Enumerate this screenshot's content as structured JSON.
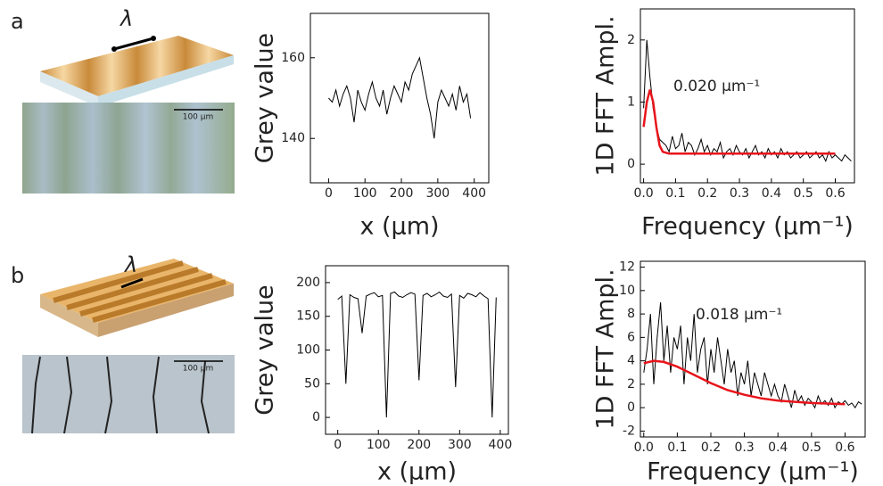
{
  "panels": [
    {
      "label": "a",
      "symbol": "λ",
      "scale_bar": "100 μm"
    },
    {
      "label": "b",
      "symbol": "λ",
      "scale_bar": "100 μm"
    }
  ],
  "chart_data": [
    {
      "type": "line",
      "x_label": "x (μm)",
      "y_label": "Grey value",
      "xlim": [
        -50,
        440
      ],
      "ylim": [
        129,
        171
      ],
      "xticks": [
        0,
        100,
        200,
        300,
        400
      ],
      "yticks": [
        140,
        160
      ],
      "series": [
        {
          "color": "#000000",
          "x": [
            0,
            10,
            20,
            30,
            40,
            50,
            60,
            70,
            80,
            90,
            100,
            110,
            120,
            130,
            140,
            150,
            160,
            170,
            180,
            190,
            200,
            210,
            220,
            230,
            240,
            250,
            260,
            270,
            280,
            290,
            300,
            310,
            320,
            330,
            340,
            350,
            360,
            370,
            380,
            390
          ],
          "values": [
            150,
            149,
            152,
            148,
            151,
            153,
            150,
            144,
            152,
            149,
            147,
            151,
            154,
            150,
            148,
            152,
            146,
            150,
            153,
            151,
            149,
            154,
            152,
            156,
            158,
            160,
            155,
            150,
            146,
            140,
            149,
            152,
            150,
            148,
            151,
            147,
            153,
            149,
            151,
            145
          ]
        }
      ]
    },
    {
      "type": "line",
      "x_label": "x (μm)",
      "y_label": "Grey value",
      "xlim": [
        -30,
        420
      ],
      "ylim": [
        -25,
        225
      ],
      "xticks": [
        0,
        100,
        200,
        300,
        400
      ],
      "yticks": [
        0,
        50,
        100,
        150,
        200
      ],
      "series": [
        {
          "color": "#000000",
          "x": [
            0,
            10,
            20,
            30,
            40,
            50,
            60,
            70,
            80,
            90,
            100,
            110,
            120,
            130,
            140,
            150,
            160,
            170,
            180,
            190,
            200,
            210,
            220,
            230,
            240,
            250,
            260,
            270,
            280,
            290,
            300,
            310,
            320,
            330,
            340,
            350,
            360,
            370,
            380,
            390
          ],
          "values": [
            175,
            180,
            50,
            182,
            178,
            176,
            125,
            180,
            183,
            185,
            179,
            181,
            0,
            184,
            186,
            180,
            178,
            182,
            185,
            183,
            55,
            181,
            184,
            179,
            182,
            186,
            180,
            178,
            183,
            45,
            181,
            177,
            184,
            182,
            179,
            185,
            180,
            176,
            0,
            178
          ]
        }
      ]
    },
    {
      "type": "line",
      "x_label": "Frequency (μm⁻¹)",
      "y_label": "1D FFT Ampl.",
      "annotation": "0.020 μm⁻¹",
      "xlim": [
        -0.01,
        0.66
      ],
      "ylim": [
        -0.3,
        2.5
      ],
      "xticks": [
        {
          "value": 0,
          "label": "0.0"
        },
        0.1,
        0.2,
        0.3,
        0.4,
        0.5,
        0.6
      ],
      "yticks": [
        0,
        1,
        2
      ],
      "series": [
        {
          "color": "#000000",
          "x": [
            0,
            0.01,
            0.02,
            0.03,
            0.04,
            0.05,
            0.06,
            0.07,
            0.08,
            0.09,
            0.1,
            0.11,
            0.12,
            0.13,
            0.14,
            0.15,
            0.16,
            0.17,
            0.18,
            0.19,
            0.2,
            0.21,
            0.22,
            0.23,
            0.24,
            0.25,
            0.26,
            0.27,
            0.28,
            0.29,
            0.3,
            0.31,
            0.32,
            0.33,
            0.34,
            0.35,
            0.36,
            0.37,
            0.38,
            0.39,
            0.4,
            0.41,
            0.42,
            0.43,
            0.44,
            0.45,
            0.46,
            0.47,
            0.48,
            0.49,
            0.5,
            0.51,
            0.52,
            0.53,
            0.54,
            0.55,
            0.56,
            0.57,
            0.58,
            0.59,
            0.6,
            0.61,
            0.62,
            0.63,
            0.64,
            0.65
          ],
          "values": [
            0.9,
            2.0,
            1.4,
            0.9,
            0.6,
            0.4,
            0.35,
            0.3,
            0.2,
            0.45,
            0.25,
            0.3,
            0.5,
            0.2,
            0.35,
            0.3,
            0.15,
            0.25,
            0.4,
            0.2,
            0.3,
            0.15,
            0.25,
            0.2,
            0.35,
            0.1,
            0.2,
            0.25,
            0.15,
            0.3,
            0.2,
            0.15,
            0.25,
            0.1,
            0.2,
            0.3,
            0.15,
            0.2,
            0.1,
            0.25,
            0.15,
            0.2,
            0.1,
            0.25,
            0.15,
            0.2,
            0.1,
            0.15,
            0.2,
            0.1,
            0.15,
            0.2,
            0.1,
            0.15,
            0.2,
            0.1,
            0.15,
            0.05,
            0.2,
            0.1,
            0.15,
            0.1,
            0.05,
            0.15,
            0.1,
            0.05
          ]
        },
        {
          "color": "#e8141b",
          "x": [
            0,
            0.01,
            0.02,
            0.03,
            0.04,
            0.05,
            0.06,
            0.08,
            0.1,
            0.15,
            0.2,
            0.3,
            0.4,
            0.5,
            0.6
          ],
          "values": [
            0.6,
            1.0,
            1.2,
            1.0,
            0.6,
            0.3,
            0.2,
            0.17,
            0.17,
            0.17,
            0.17,
            0.17,
            0.17,
            0.17,
            0.17
          ]
        }
      ]
    },
    {
      "type": "line",
      "x_label": "Frequency (μm⁻¹)",
      "y_label": "1D FFT Ampl.",
      "annotation": "0.018 μm⁻¹",
      "xlim": [
        -0.01,
        0.66
      ],
      "ylim": [
        -2.5,
        12.5
      ],
      "xticks": [
        {
          "value": 0,
          "label": "0.0"
        },
        0.1,
        0.2,
        0.3,
        0.4,
        0.5,
        0.6
      ],
      "yticks": [
        -2,
        0,
        2,
        4,
        6,
        8,
        10,
        12
      ],
      "series": [
        {
          "color": "#000000",
          "x": [
            0,
            0.01,
            0.02,
            0.03,
            0.04,
            0.05,
            0.06,
            0.07,
            0.08,
            0.09,
            0.1,
            0.11,
            0.12,
            0.13,
            0.14,
            0.15,
            0.16,
            0.17,
            0.18,
            0.19,
            0.2,
            0.21,
            0.22,
            0.23,
            0.24,
            0.25,
            0.26,
            0.27,
            0.28,
            0.29,
            0.3,
            0.31,
            0.32,
            0.33,
            0.34,
            0.35,
            0.36,
            0.37,
            0.38,
            0.39,
            0.4,
            0.41,
            0.42,
            0.43,
            0.44,
            0.45,
            0.46,
            0.47,
            0.48,
            0.49,
            0.5,
            0.51,
            0.52,
            0.53,
            0.54,
            0.55,
            0.56,
            0.57,
            0.58,
            0.59,
            0.6,
            0.61,
            0.62,
            0.63,
            0.64,
            0.65
          ],
          "values": [
            3,
            5,
            8,
            2,
            6,
            9,
            4,
            7,
            3,
            6,
            5,
            7,
            2,
            6,
            4,
            8,
            3,
            5,
            6,
            2,
            5,
            3,
            6,
            4,
            2,
            5,
            3,
            4,
            1,
            3,
            2,
            4,
            1,
            3,
            2,
            1,
            3,
            2,
            1,
            2,
            1,
            0.5,
            2,
            1,
            0,
            1.5,
            0.5,
            1,
            0.2,
            0.8,
            0.5,
            0,
            1,
            0.3,
            0.6,
            0.2,
            0.8,
            0,
            0.5,
            0.3,
            0.6,
            0.2,
            0.4,
            0,
            0.5,
            0.3
          ]
        },
        {
          "color": "#e8141b",
          "x": [
            0,
            0.03,
            0.06,
            0.1,
            0.15,
            0.2,
            0.25,
            0.3,
            0.35,
            0.4,
            0.5,
            0.6
          ],
          "values": [
            3.8,
            4.0,
            3.9,
            3.5,
            2.8,
            2.1,
            1.5,
            1.1,
            0.8,
            0.6,
            0.4,
            0.3
          ]
        }
      ]
    }
  ]
}
